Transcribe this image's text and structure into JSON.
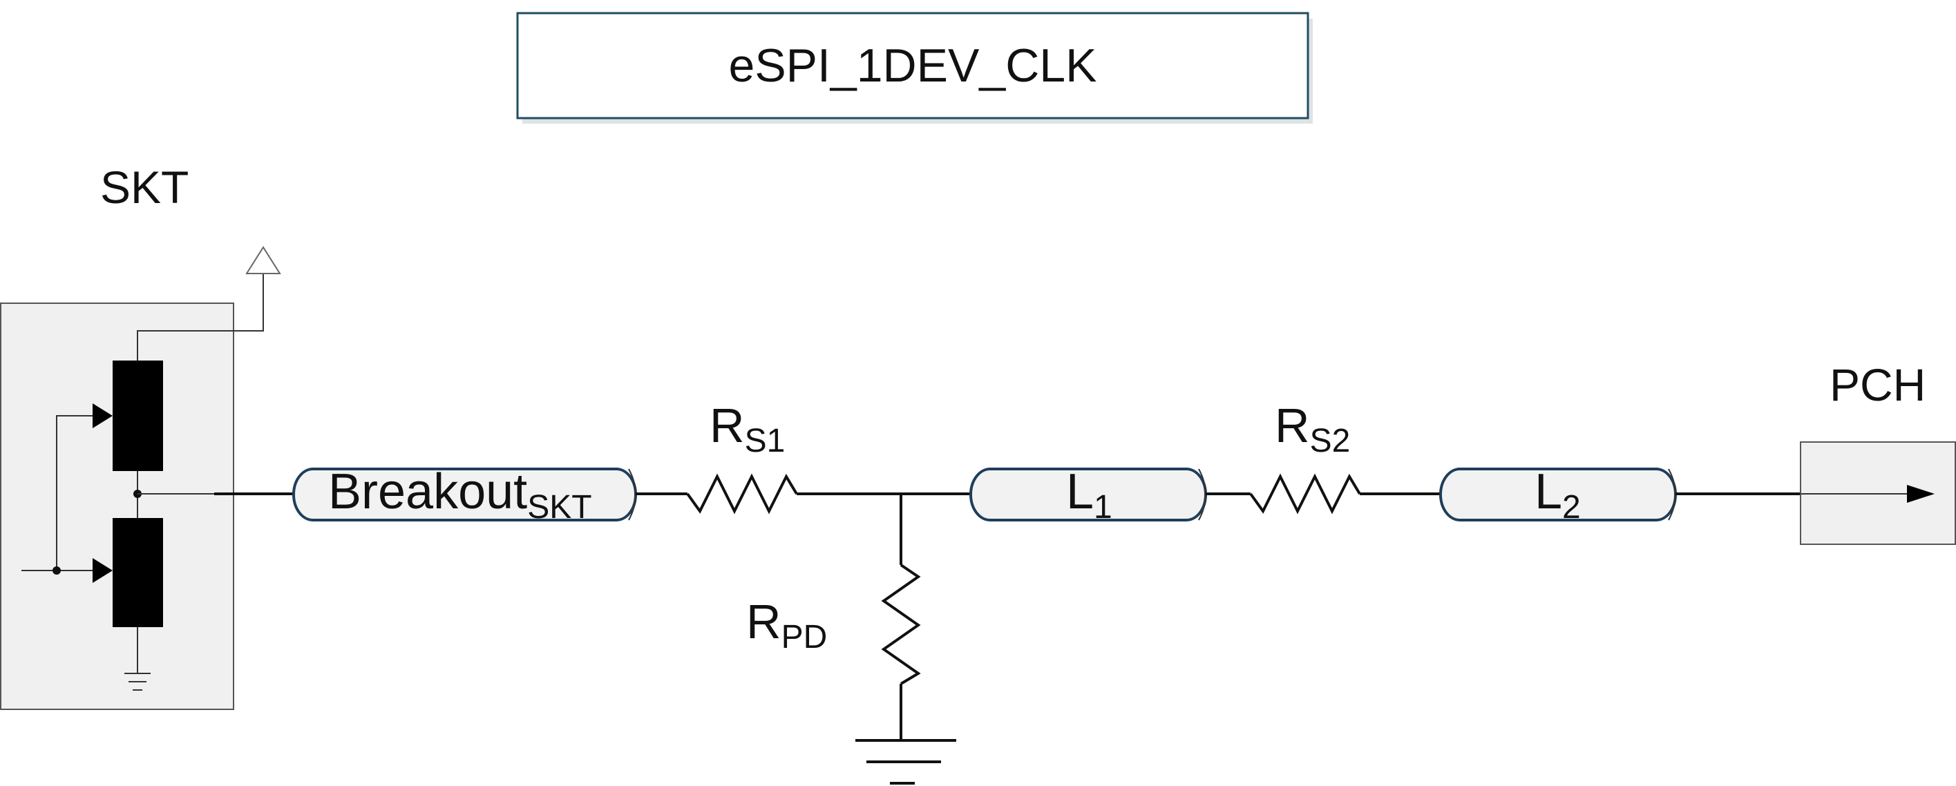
{
  "title": "eSPI_1DEV_CLK",
  "labels": {
    "skt": "SKT",
    "pch": "PCH",
    "breakout": {
      "main": "Breakout",
      "sub": "SKT"
    },
    "rs1": {
      "main": "R",
      "sub": "S1"
    },
    "rs2": {
      "main": "R",
      "sub": "S2"
    },
    "rpd": {
      "main": "R",
      "sub": "PD"
    },
    "l1": {
      "main": "L",
      "sub": "1"
    },
    "l2": {
      "main": "L",
      "sub": "2"
    }
  }
}
